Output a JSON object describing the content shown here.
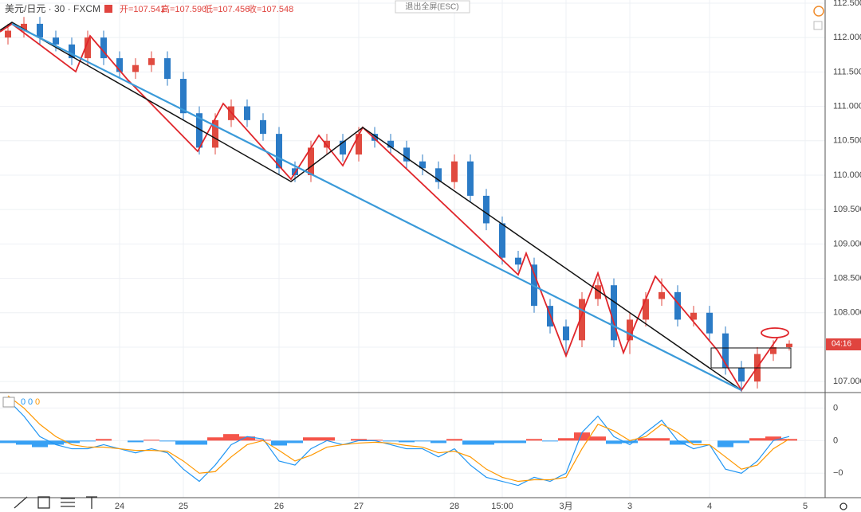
{
  "header": {
    "symbol": "美元/日元 · 30 · FXCM",
    "ohlc": [
      "开=107.541",
      "高=107.590",
      "低=107.456",
      "收=107.548"
    ],
    "exit_button": "退出全屏(ESC)",
    "countdown": "04:16"
  },
  "chart_data": [
    {
      "type": "candlestick",
      "grid": true,
      "up_color": "#e04a3f",
      "down_color": "#2b7bc6",
      "categories": [
        null,
        null,
        null,
        null,
        null,
        null,
        null,
        "24",
        null,
        null,
        null,
        "25",
        null,
        null,
        null,
        null,
        null,
        "26",
        null,
        null,
        null,
        null,
        "27",
        null,
        null,
        null,
        null,
        null,
        "28",
        null,
        null,
        "15:00",
        null,
        null,
        null,
        "3月",
        null,
        null,
        null,
        "3",
        null,
        null,
        null,
        null,
        "4",
        null,
        null,
        null,
        null,
        null,
        "5"
      ],
      "open": [
        112.0,
        112.1,
        112.2,
        112.0,
        111.9,
        111.7,
        112.0,
        111.7,
        111.5,
        111.6,
        111.7,
        111.4,
        110.9,
        110.4,
        110.8,
        111.0,
        110.8,
        110.6,
        110.1,
        110.0,
        110.4,
        110.5,
        110.3,
        110.6,
        110.5,
        110.4,
        110.2,
        110.1,
        109.9,
        110.2,
        109.7,
        109.3,
        108.8,
        108.7,
        108.1,
        107.8,
        107.6,
        108.2,
        108.4,
        107.6,
        107.9,
        108.2,
        108.3,
        107.9,
        108.0,
        107.7,
        107.2,
        107.0,
        107.4,
        107.5,
        null
      ],
      "high": [
        112.2,
        112.3,
        112.3,
        112.1,
        112.0,
        112.1,
        112.1,
        111.8,
        111.7,
        111.8,
        111.8,
        111.5,
        111.0,
        110.9,
        111.1,
        111.1,
        110.9,
        110.7,
        110.2,
        110.5,
        110.6,
        110.6,
        110.7,
        110.7,
        110.6,
        110.5,
        110.3,
        110.2,
        110.3,
        110.3,
        109.8,
        109.4,
        108.9,
        108.8,
        108.2,
        107.9,
        108.3,
        108.5,
        108.5,
        108.0,
        108.3,
        108.5,
        108.4,
        108.1,
        108.1,
        107.8,
        107.3,
        107.5,
        107.6,
        107.6,
        null
      ],
      "low": [
        111.9,
        112.0,
        111.9,
        111.8,
        111.6,
        111.6,
        111.6,
        111.4,
        111.4,
        111.5,
        111.3,
        110.8,
        110.3,
        110.3,
        110.7,
        110.7,
        110.5,
        110.0,
        109.9,
        109.9,
        110.3,
        110.2,
        110.2,
        110.4,
        110.3,
        110.1,
        110.0,
        109.8,
        109.8,
        109.6,
        109.2,
        108.7,
        108.6,
        108.0,
        107.7,
        107.4,
        107.5,
        108.1,
        107.5,
        107.4,
        107.8,
        108.1,
        107.8,
        107.8,
        107.6,
        107.1,
        106.85,
        106.9,
        107.3,
        107.45,
        null
      ],
      "close": [
        112.1,
        112.2,
        112.0,
        111.9,
        111.7,
        112.0,
        111.7,
        111.5,
        111.6,
        111.7,
        111.4,
        110.9,
        110.4,
        110.8,
        111.0,
        110.8,
        110.6,
        110.1,
        110.0,
        110.4,
        110.5,
        110.3,
        110.6,
        110.5,
        110.4,
        110.2,
        110.1,
        109.9,
        110.2,
        109.7,
        109.3,
        108.8,
        108.7,
        108.1,
        107.8,
        107.6,
        108.2,
        108.4,
        107.6,
        107.9,
        108.2,
        108.3,
        107.9,
        108.0,
        107.7,
        107.2,
        107.0,
        107.4,
        107.5,
        107.55,
        null
      ],
      "ylim": [
        106.84,
        112.546
      ],
      "yticks": [
        {
          "value": 112.5,
          "label": "112.500"
        },
        {
          "value": 112.0,
          "label": "112.000"
        },
        {
          "value": 111.5,
          "label": "111.500"
        },
        {
          "value": 111.0,
          "label": "111.000"
        },
        {
          "value": 110.5,
          "label": "110.500"
        },
        {
          "value": 110.0,
          "label": "110.000"
        },
        {
          "value": 109.5,
          "label": "109.500"
        },
        {
          "value": 109.0,
          "label": "109.000"
        },
        {
          "value": 108.5,
          "label": "108.500"
        },
        {
          "value": 108.0,
          "label": "108.000"
        },
        {
          "value": 107.5,
          "label": "107.500"
        },
        {
          "value": 107.0,
          "label": "107.000"
        }
      ]
    },
    {
      "type": "macd",
      "grid": true,
      "legend_values": [
        0,
        0,
        0
      ],
      "legend_colors": [
        "#2196f3",
        "#2196f3",
        "#ff9800"
      ],
      "ylim": [
        -0.7,
        0.57
      ],
      "yticks": [
        {
          "value": 0.4,
          "label": "0"
        },
        0,
        {
          "value": -0.4,
          "label": "−0"
        }
      ],
      "histogram": {
        "up_color": "#f44336",
        "down_color": "#2196f3",
        "values": [
          -0.03,
          -0.05,
          -0.08,
          -0.05,
          -0.03,
          -0.01,
          0.02,
          0.0,
          -0.02,
          0.01,
          -0.01,
          -0.05,
          -0.05,
          0.04,
          0.08,
          0.05,
          0.01,
          -0.06,
          -0.03,
          0.04,
          0.04,
          0.0,
          0.02,
          0.01,
          -0.01,
          -0.02,
          -0.01,
          -0.03,
          0.02,
          -0.05,
          -0.05,
          -0.03,
          -0.03,
          0.02,
          -0.01,
          0.03,
          0.1,
          0.05,
          -0.04,
          -0.03,
          0.03,
          0.03,
          -0.05,
          -0.03,
          0.0,
          -0.08,
          -0.03,
          0.03,
          0.05,
          0.02,
          null
        ]
      },
      "lines": [
        {
          "color": "#2196f3",
          "values": [
            0.5,
            0.3,
            0.05,
            -0.05,
            -0.1,
            -0.1,
            -0.05,
            -0.1,
            -0.15,
            -0.1,
            -0.15,
            -0.35,
            -0.5,
            -0.3,
            -0.05,
            0.05,
            0.02,
            -0.25,
            -0.3,
            -0.1,
            0.0,
            -0.05,
            0.0,
            0.0,
            -0.05,
            -0.1,
            -0.1,
            -0.2,
            -0.1,
            -0.3,
            -0.45,
            -0.5,
            -0.55,
            -0.45,
            -0.5,
            -0.4,
            0.1,
            0.3,
            0.05,
            -0.05,
            0.1,
            0.25,
            0.0,
            -0.1,
            -0.05,
            -0.35,
            -0.4,
            -0.25,
            0.0,
            0.05,
            null
          ]
        },
        {
          "color": "#ff9800",
          "values": [
            0.55,
            0.4,
            0.2,
            0.05,
            -0.05,
            -0.08,
            -0.08,
            -0.1,
            -0.12,
            -0.12,
            -0.13,
            -0.25,
            -0.4,
            -0.38,
            -0.2,
            -0.05,
            0.0,
            -0.12,
            -0.25,
            -0.18,
            -0.08,
            -0.05,
            -0.03,
            -0.02,
            -0.03,
            -0.06,
            -0.08,
            -0.15,
            -0.13,
            -0.2,
            -0.35,
            -0.45,
            -0.5,
            -0.48,
            -0.48,
            -0.45,
            -0.1,
            0.2,
            0.12,
            0.0,
            0.05,
            0.2,
            0.1,
            -0.05,
            -0.05,
            -0.2,
            -0.35,
            -0.3,
            -0.1,
            0.02,
            null
          ]
        }
      ]
    }
  ]
}
